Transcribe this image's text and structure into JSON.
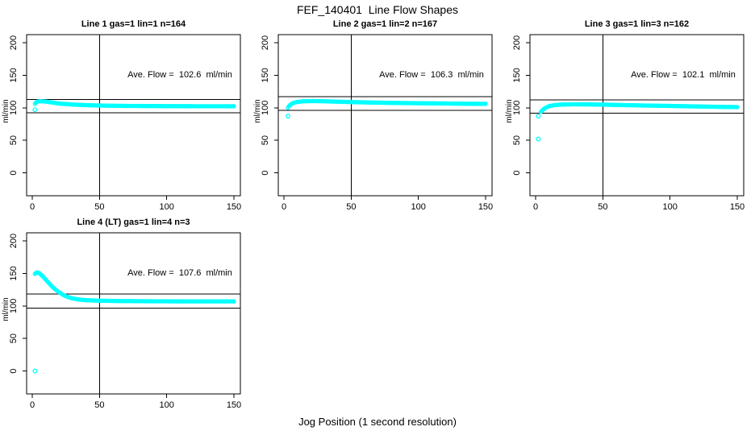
{
  "page": {
    "title": "FEF_140401  Line Flow Shapes",
    "xlabel": "Jog Position (1 second resolution)"
  },
  "chart_data": [
    {
      "type": "scatter",
      "title": "Line 1 gas=1 lin=1 n=164",
      "annotation": "Ave. Flow =  102.6  ml/min",
      "ave_flow": 102.6,
      "n": 164,
      "ylabel": "ml/min",
      "x_ticks": [
        0,
        50,
        100,
        150
      ],
      "y_ticks": [
        0,
        50,
        100,
        150,
        200
      ],
      "xlim": [
        -5,
        157
      ],
      "ylim": [
        -22,
        212
      ],
      "vline_x": 50,
      "hlines": [
        112.9,
        92.3
      ],
      "point_color": "#00FFFF",
      "outliers": [
        [
          2,
          97
        ]
      ],
      "curve": [
        [
          2,
          106
        ],
        [
          3,
          108.5
        ],
        [
          4,
          109.5
        ],
        [
          6,
          110
        ],
        [
          10,
          109.5
        ],
        [
          15,
          108
        ],
        [
          20,
          106.5
        ],
        [
          30,
          105
        ],
        [
          40,
          104
        ],
        [
          55,
          103.2
        ],
        [
          70,
          102.8
        ],
        [
          100,
          102.5
        ],
        [
          130,
          102.3
        ],
        [
          150,
          102.3
        ]
      ]
    },
    {
      "type": "scatter",
      "title": "Line 2 gas=1 lin=2 n=167",
      "annotation": "Ave. Flow =  106.3  ml/min",
      "ave_flow": 106.3,
      "n": 167,
      "ylabel": "ml/min",
      "x_ticks": [
        0,
        50,
        100,
        150
      ],
      "y_ticks": [
        0,
        50,
        100,
        150,
        200
      ],
      "xlim": [
        -5,
        157
      ],
      "ylim": [
        -22,
        212
      ],
      "vline_x": 50,
      "hlines": [
        116.9,
        95.7
      ],
      "point_color": "#00FFFF",
      "outliers": [
        [
          3,
          87
        ]
      ],
      "curve": [
        [
          3,
          100
        ],
        [
          4,
          103
        ],
        [
          5,
          105
        ],
        [
          7,
          107.5
        ],
        [
          10,
          109
        ],
        [
          15,
          110
        ],
        [
          22,
          110.3
        ],
        [
          30,
          110
        ],
        [
          40,
          109.3
        ],
        [
          55,
          108.5
        ],
        [
          70,
          107.8
        ],
        [
          90,
          107.2
        ],
        [
          110,
          106.8
        ],
        [
          130,
          106.3
        ],
        [
          150,
          106
        ]
      ]
    },
    {
      "type": "scatter",
      "title": "Line 3 gas=1 lin=3 n=162",
      "annotation": "Ave. Flow =  102.1  ml/min",
      "ave_flow": 102.1,
      "n": 162,
      "ylabel": "ml/min",
      "x_ticks": [
        0,
        50,
        100,
        150
      ],
      "y_ticks": [
        0,
        50,
        100,
        150,
        200
      ],
      "xlim": [
        -5,
        157
      ],
      "ylim": [
        -22,
        212
      ],
      "vline_x": 50,
      "hlines": [
        112.3,
        91.9
      ],
      "point_color": "#00FFFF",
      "outliers": [
        [
          2,
          52
        ],
        [
          2,
          87
        ]
      ],
      "curve": [
        [
          4,
          94
        ],
        [
          5,
          96
        ],
        [
          6,
          98
        ],
        [
          8,
          100.5
        ],
        [
          10,
          102.5
        ],
        [
          14,
          104
        ],
        [
          20,
          105
        ],
        [
          30,
          105.3
        ],
        [
          45,
          105
        ],
        [
          60,
          104.3
        ],
        [
          80,
          103.5
        ],
        [
          100,
          102.8
        ],
        [
          120,
          102
        ],
        [
          140,
          101.3
        ],
        [
          150,
          101
        ]
      ]
    },
    {
      "type": "scatter",
      "title": "Line 4 (LT) gas=1 lin=4 n=3",
      "annotation": "Ave. Flow =  107.6  ml/min",
      "ave_flow": 107.6,
      "n": 3,
      "ylabel": "ml/min",
      "x_ticks": [
        0,
        50,
        100,
        150
      ],
      "y_ticks": [
        0,
        50,
        100,
        150,
        200
      ],
      "xlim": [
        -5,
        157
      ],
      "ylim": [
        -22,
        212
      ],
      "vline_x": 50,
      "hlines": [
        118.4,
        96.8
      ],
      "point_color": "#00FFFF",
      "outliers": [
        [
          2,
          0
        ]
      ],
      "curve": [
        [
          2,
          149
        ],
        [
          3,
          151
        ],
        [
          4,
          151.5
        ],
        [
          5,
          150.5
        ],
        [
          6,
          149
        ],
        [
          7,
          147
        ],
        [
          8,
          145
        ],
        [
          10,
          140.5
        ],
        [
          12,
          136
        ],
        [
          14,
          131.5
        ],
        [
          16,
          127.5
        ],
        [
          18,
          124
        ],
        [
          20,
          121
        ],
        [
          23,
          117
        ],
        [
          26,
          114
        ],
        [
          30,
          111.5
        ],
        [
          35,
          109.8
        ],
        [
          40,
          108.8
        ],
        [
          50,
          108
        ],
        [
          65,
          107.5
        ],
        [
          85,
          107.2
        ],
        [
          110,
          107
        ],
        [
          150,
          107
        ]
      ]
    }
  ]
}
